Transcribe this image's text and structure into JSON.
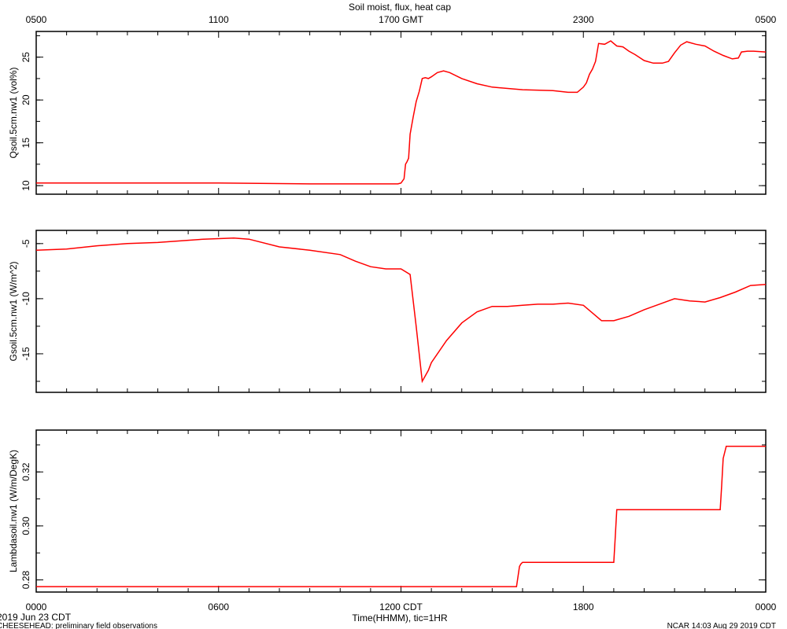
{
  "title": "Soil moist, flux, heat cap",
  "top_axis": {
    "labels": [
      "0500",
      "1100",
      "1700 GMT",
      "2300",
      "0500"
    ],
    "hours": [
      0,
      6,
      12,
      18,
      24
    ]
  },
  "bottom_axis": {
    "labels": [
      "0000",
      "0600",
      "1200 CDT",
      "1800",
      "0000"
    ],
    "hours": [
      0,
      6,
      12,
      18,
      24
    ],
    "xlabel": "Time(HHMM), tic=1HR"
  },
  "footer": {
    "date": "2019 Jun 23 CDT",
    "project": "CHEESEHEAD: preliminary field observations",
    "stamp": "NCAR 14:03 Aug 29 2019 CDT"
  },
  "colors": {
    "series": "#ff0000",
    "axis": "#000000"
  },
  "chart_data": [
    {
      "type": "line",
      "ylabel": "Qsoil.5cm.nw1 (vol%)",
      "ylim": [
        9,
        28
      ],
      "yticks": [
        10,
        15,
        20,
        25
      ],
      "yticklabels": [
        "10",
        "15",
        "20",
        "25"
      ],
      "x": [
        0,
        3,
        6,
        9,
        10,
        11,
        11.5,
        11.9,
        12.0,
        12.1,
        12.15,
        12.2,
        12.25,
        12.3,
        12.4,
        12.5,
        12.6,
        12.7,
        12.8,
        12.9,
        13.0,
        13.2,
        13.4,
        13.6,
        14.0,
        14.5,
        15,
        16,
        17,
        17.5,
        17.8,
        18,
        18.1,
        18.2,
        18.3,
        18.4,
        18.5,
        18.7,
        18.9,
        19.1,
        19.3,
        19.5,
        19.7,
        20,
        20.3,
        20.6,
        20.8,
        21.0,
        21.2,
        21.4,
        21.7,
        22.0,
        22.3,
        22.6,
        22.9,
        23.1,
        23.2,
        23.4,
        23.6,
        24.0
      ],
      "y": [
        10.3,
        10.3,
        10.3,
        10.2,
        10.2,
        10.2,
        10.2,
        10.2,
        10.3,
        10.8,
        12.5,
        12.8,
        13.2,
        16.0,
        18.0,
        19.8,
        21.0,
        22.5,
        22.6,
        22.5,
        22.7,
        23.2,
        23.4,
        23.2,
        22.5,
        21.9,
        21.5,
        21.2,
        21.1,
        20.9,
        20.9,
        21.5,
        22.0,
        23.0,
        23.6,
        24.5,
        26.6,
        26.5,
        26.9,
        26.3,
        26.2,
        25.7,
        25.3,
        24.6,
        24.3,
        24.3,
        24.5,
        25.5,
        26.4,
        26.8,
        26.5,
        26.3,
        25.7,
        25.2,
        24.8,
        24.9,
        25.6,
        25.7,
        25.7,
        25.6
      ],
      "series": [
        {
          "name": "",
          "color": "#ff0000"
        }
      ]
    },
    {
      "type": "line",
      "ylabel": "Gsoil.5cm.nw1 (W/m^2)",
      "ylim": [
        -18.5,
        -3.8
      ],
      "yticks": [
        -5,
        -10,
        -15
      ],
      "yticklabels": [
        "-5",
        "-10",
        "-15"
      ],
      "x": [
        0,
        1,
        2,
        3,
        4,
        5,
        5.5,
        6.5,
        7,
        8,
        9,
        10,
        10.5,
        11,
        11.5,
        12,
        12.3,
        12.5,
        12.7,
        12.9,
        13.0,
        13.5,
        14,
        14.5,
        15,
        15.5,
        16,
        16.5,
        17,
        17.5,
        18,
        18.3,
        18.6,
        19,
        19.5,
        20,
        20.5,
        21,
        21.5,
        22,
        22.5,
        23,
        23.5,
        24
      ],
      "y": [
        -5.6,
        -5.5,
        -5.2,
        -5.0,
        -4.9,
        -4.7,
        -4.6,
        -4.5,
        -4.6,
        -5.3,
        -5.6,
        -6.0,
        -6.6,
        -7.1,
        -7.3,
        -7.3,
        -7.8,
        -12.5,
        -17.5,
        -16.5,
        -15.8,
        -13.8,
        -12.2,
        -11.2,
        -10.7,
        -10.7,
        -10.6,
        -10.5,
        -10.5,
        -10.4,
        -10.6,
        -11.3,
        -12.0,
        -12.0,
        -11.6,
        -11.0,
        -10.5,
        -10.0,
        -10.2,
        -10.3,
        -9.9,
        -9.4,
        -8.8,
        -8.7
      ],
      "series": [
        {
          "name": "",
          "color": "#ff0000"
        }
      ]
    },
    {
      "type": "line",
      "ylabel": "Lambdasoil.nw1 (W/m/DegK)",
      "ylim": [
        0.2755,
        0.3355
      ],
      "yticks": [
        0.28,
        0.3,
        0.32
      ],
      "yticklabels": [
        "0.28",
        "0.30",
        "0.32"
      ],
      "x": [
        0,
        15.8,
        15.9,
        15.95,
        16.0,
        19.0,
        19.05,
        19.1,
        22.5,
        22.55,
        22.6,
        22.7,
        24
      ],
      "y": [
        0.2775,
        0.2775,
        0.285,
        0.286,
        0.2865,
        0.2865,
        0.296,
        0.306,
        0.306,
        0.315,
        0.325,
        0.3295,
        0.3295
      ],
      "series": [
        {
          "name": "",
          "color": "#ff0000"
        }
      ]
    }
  ]
}
